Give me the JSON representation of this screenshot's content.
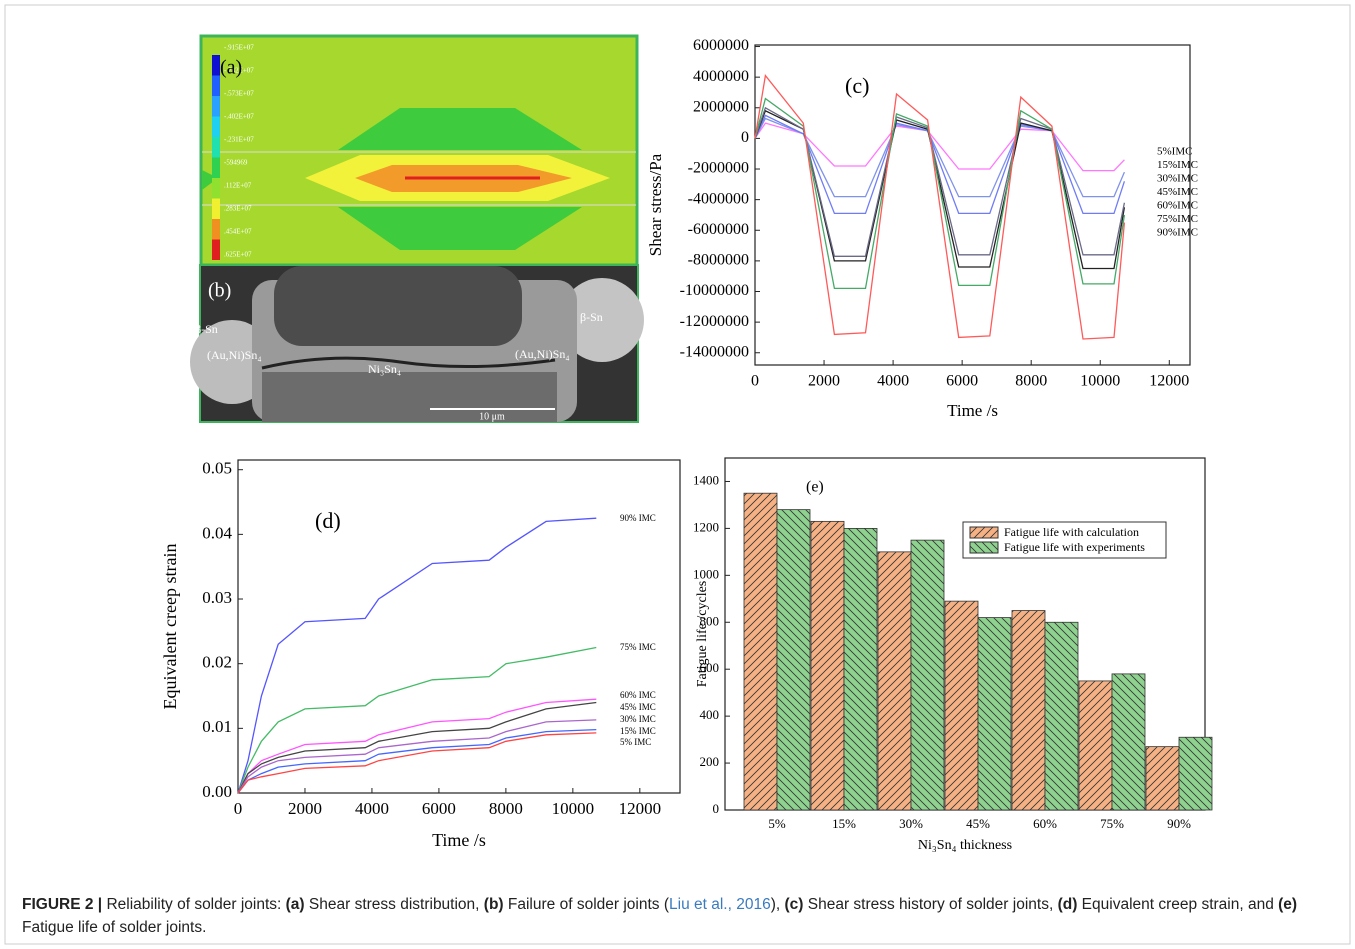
{
  "figure": {
    "panel_a": {
      "label": "(a)",
      "legend": [
        "-.915E+07",
        "-.742E+07",
        "-.573E+07",
        "-.402E+07",
        "-.231E+07",
        "-594969",
        ".112E+07",
        ".283E+07",
        ".454E+07",
        ".625E+07"
      ]
    },
    "panel_b": {
      "label": "(b)",
      "annotations": [
        "β-Sn",
        "(Au,Ni)Sn₄",
        "Ni₃Sn₄",
        "(Au,Ni)Sn₄",
        "β-Sn"
      ],
      "scale_bar": "10 μm"
    },
    "caption": [
      "FIGURE 2 |",
      " Reliability of solder joints: ",
      "(a)",
      " Shear stress distribution, ",
      "(b)",
      " Failure of solder joints (",
      "Liu et al., 2016",
      "), ",
      "(c)",
      " Shear stress history of solder joints, ",
      "(d)",
      " Equivalent creep strain, and ",
      "(e)",
      " Fatigue life of solder joints."
    ]
  },
  "chart_data": [
    {
      "type": "line",
      "label": "(c)",
      "x_label": "Time /s",
      "y_label": "Shear stress/Pa",
      "x": [
        0,
        300,
        1400,
        2300,
        3200,
        4100,
        5000,
        5900,
        6800,
        7700,
        8600,
        9500,
        10400,
        10700
      ],
      "series": [
        {
          "name": "5%IMC",
          "color": "#ff77ff",
          "values": [
            0,
            1000000,
            300000,
            -1800000,
            -1800000,
            800000,
            500000,
            -2000000,
            -2000000,
            600000,
            500000,
            -2100000,
            -2100000,
            -1400000
          ]
        },
        {
          "name": "15%IMC",
          "color": "#7f93e8",
          "values": [
            0,
            1300000,
            300000,
            -3800000,
            -3800000,
            900000,
            500000,
            -3800000,
            -3800000,
            800000,
            500000,
            -3800000,
            -3800000,
            -2200000
          ]
        },
        {
          "name": "30%IMC",
          "color": "#6f7cf5",
          "values": [
            0,
            1500000,
            300000,
            -4900000,
            -4900000,
            1000000,
            500000,
            -4900000,
            -4900000,
            900000,
            500000,
            -4900000,
            -4900000,
            -2800000
          ]
        },
        {
          "name": "45%IMC",
          "color": "#222222",
          "values": [
            0,
            1800000,
            600000,
            -8000000,
            -8000000,
            1200000,
            600000,
            -8400000,
            -8400000,
            1000000,
            500000,
            -8500000,
            -8500000,
            -4500000
          ]
        },
        {
          "name": "60%IMC",
          "color": "#6a6a88",
          "values": [
            0,
            2000000,
            600000,
            -7700000,
            -7700000,
            1400000,
            700000,
            -7600000,
            -7600000,
            1300000,
            600000,
            -7600000,
            -7600000,
            -4200000
          ]
        },
        {
          "name": "75%IMC",
          "color": "#44aa66",
          "values": [
            0,
            2600000,
            800000,
            -9800000,
            -9800000,
            1600000,
            800000,
            -9600000,
            -9600000,
            1800000,
            600000,
            -9500000,
            -9500000,
            -5000000
          ]
        },
        {
          "name": "90%IMC",
          "color": "#ff5a5a",
          "values": [
            0,
            4100000,
            1000000,
            -12800000,
            -12700000,
            2900000,
            1200000,
            -13000000,
            -12900000,
            2700000,
            800000,
            -13100000,
            -13000000,
            -5500000
          ]
        }
      ],
      "xlim": [
        0,
        12600
      ],
      "xticks": [
        0,
        2000,
        4000,
        6000,
        8000,
        10000,
        12000
      ],
      "ylim": [
        -14800000,
        6100000
      ],
      "yticks": [
        6000000,
        4000000,
        2000000,
        0,
        -2000000,
        -4000000,
        -6000000,
        -8000000,
        -10000000,
        -12000000,
        -14000000
      ]
    },
    {
      "type": "line",
      "label": "(d)",
      "x_label": "Time /s",
      "y_label": "Equivalent creep strain",
      "x": [
        0,
        300,
        700,
        1200,
        2000,
        3800,
        4200,
        5800,
        7500,
        8000,
        9200,
        10700
      ],
      "series": [
        {
          "name": "90% IMC",
          "color": "#5555ff",
          "values": [
            0,
            0.005,
            0.015,
            0.023,
            0.0265,
            0.027,
            0.03,
            0.0355,
            0.036,
            0.038,
            0.042,
            0.0425
          ]
        },
        {
          "name": "75% IMC",
          "color": "#44bb66",
          "values": [
            0,
            0.004,
            0.008,
            0.011,
            0.013,
            0.0135,
            0.015,
            0.0175,
            0.018,
            0.02,
            0.021,
            0.0225
          ]
        },
        {
          "name": "60% IMC",
          "color": "#ff55ff",
          "values": [
            0,
            0.003,
            0.005,
            0.006,
            0.0075,
            0.008,
            0.009,
            0.011,
            0.0115,
            0.0125,
            0.014,
            0.0145
          ]
        },
        {
          "name": "45% IMC",
          "color": "#444444",
          "values": [
            0,
            0.003,
            0.0045,
            0.0055,
            0.0065,
            0.007,
            0.008,
            0.0095,
            0.01,
            0.011,
            0.013,
            0.014
          ]
        },
        {
          "name": "30% IMC",
          "color": "#aa66cc",
          "values": [
            0,
            0.0025,
            0.004,
            0.005,
            0.0055,
            0.006,
            0.007,
            0.008,
            0.0085,
            0.0095,
            0.011,
            0.0113
          ]
        },
        {
          "name": "15% IMC",
          "color": "#4466ff",
          "values": [
            0,
            0.002,
            0.003,
            0.004,
            0.0045,
            0.005,
            0.006,
            0.007,
            0.0075,
            0.0085,
            0.0095,
            0.0098
          ]
        },
        {
          "name": "5% IMC",
          "color": "#ff4444",
          "values": [
            0,
            0.002,
            0.0025,
            0.003,
            0.0038,
            0.0042,
            0.005,
            0.0065,
            0.007,
            0.008,
            0.009,
            0.0093
          ]
        }
      ],
      "xlim": [
        0,
        13200
      ],
      "xticks": [
        0,
        2000,
        4000,
        6000,
        8000,
        10000,
        12000
      ],
      "ylim": [
        0,
        0.0515
      ],
      "yticks": [
        {
          "value": 0,
          "label": "0.00"
        },
        0.01,
        0.02,
        0.03,
        0.04,
        0.05
      ]
    },
    {
      "type": "bar",
      "label": "(e)",
      "x_label": "Ni₃Sn₄ thickness",
      "y_label": "Fatigue life /cycles",
      "categories": [
        "5%",
        "15%",
        "30%",
        "45%",
        "60%",
        "75%",
        "90%"
      ],
      "series": [
        {
          "name": "Fatigue life with calculation",
          "color": "#f5b183",
          "values": [
            1350,
            1230,
            1100,
            890,
            850,
            550,
            270
          ]
        },
        {
          "name": "Fatigue life with experiments",
          "color": "#8fd18f",
          "values": [
            1280,
            1200,
            1150,
            820,
            800,
            580,
            310
          ]
        }
      ],
      "ylim": [
        0,
        1500
      ],
      "yticks": [
        0,
        200,
        400,
        600,
        800,
        1000,
        1200,
        1400
      ]
    }
  ]
}
